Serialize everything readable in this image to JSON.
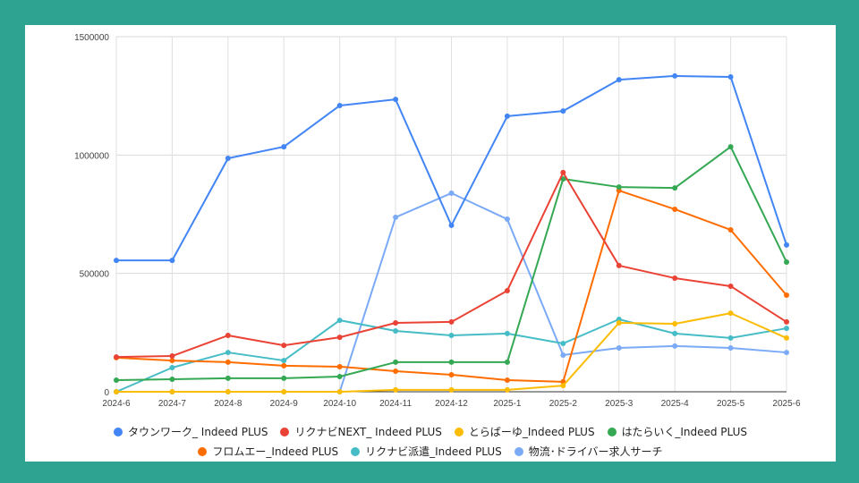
{
  "chart_data": {
    "type": "line",
    "title": "",
    "xlabel": "",
    "ylabel": "",
    "ylim": [
      0,
      1500000
    ],
    "yticks": [
      "0",
      "500000",
      "1000000",
      "1500000"
    ],
    "grid": true,
    "legend_position": "bottom",
    "categories": [
      "2024-6",
      "2024-7",
      "2024-8",
      "2024-9",
      "2024-10",
      "2024-11",
      "2024-12",
      "2025-1",
      "2025-2",
      "2025-3",
      "2025-4",
      "2025-5",
      "2025-6"
    ],
    "series": [
      {
        "name": "タウンワーク_ Indeed PLUS",
        "color": "#4285f4",
        "values": [
          555000,
          555000,
          986000,
          1035000,
          1209000,
          1235000,
          703000,
          1164000,
          1186000,
          1318000,
          1334000,
          1330000,
          620000
        ]
      },
      {
        "name": "リクナビNEXT_ Indeed PLUS",
        "color": "#ea4335",
        "values": [
          147000,
          151000,
          238000,
          196000,
          230000,
          291000,
          295000,
          427000,
          926000,
          533000,
          480000,
          446000,
          295000
        ]
      },
      {
        "name": "とらばーゆ_Indeed PLUS",
        "color": "#fbbc04",
        "values": [
          0,
          0,
          0,
          0,
          0,
          8000,
          8000,
          8000,
          26000,
          291000,
          287000,
          332000,
          227000
        ]
      },
      {
        "name": "はたらいく_Indeed PLUS",
        "color": "#34a853",
        "values": [
          49000,
          53000,
          57000,
          57000,
          64000,
          125000,
          125000,
          125000,
          899000,
          865000,
          861000,
          1035000,
          548000
        ]
      },
      {
        "name": "フロムエー_Indeed PLUS",
        "color": "#ff6d01",
        "values": [
          144000,
          132000,
          125000,
          110000,
          106000,
          87000,
          72000,
          49000,
          42000,
          850000,
          771000,
          684000,
          408000
        ]
      },
      {
        "name": "リクナビ派遣_Indeed PLUS",
        "color": "#46bdc6",
        "values": [
          0,
          102000,
          166000,
          132000,
          302000,
          257000,
          238000,
          246000,
          204000,
          306000,
          246000,
          227000,
          268000
        ]
      },
      {
        "name": "物流･ドライバー求人サーチ",
        "color": "#7baaf7",
        "values": [
          0,
          0,
          0,
          0,
          0,
          737000,
          839000,
          729000,
          155000,
          185000,
          193000,
          185000,
          166000
        ]
      }
    ]
  }
}
